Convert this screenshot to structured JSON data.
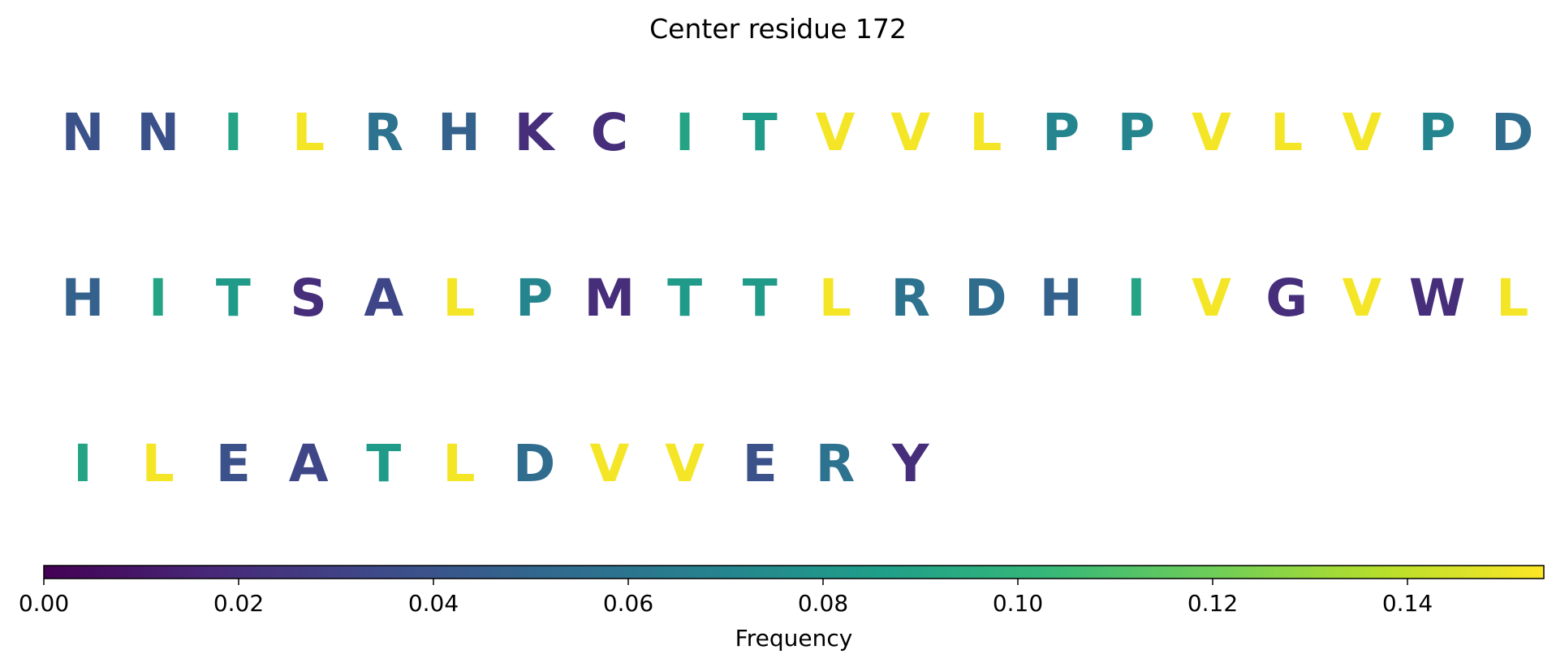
{
  "chart_data": {
    "type": "heatmap",
    "title": "Center residue 172",
    "residues": [
      {
        "letter": "N",
        "frequency": 0.038
      },
      {
        "letter": "N",
        "frequency": 0.038
      },
      {
        "letter": "I",
        "frequency": 0.09
      },
      {
        "letter": "L",
        "frequency": 0.152
      },
      {
        "letter": "R",
        "frequency": 0.058
      },
      {
        "letter": "H",
        "frequency": 0.048
      },
      {
        "letter": "K",
        "frequency": 0.02
      },
      {
        "letter": "C",
        "frequency": 0.02
      },
      {
        "letter": "I",
        "frequency": 0.09
      },
      {
        "letter": "T",
        "frequency": 0.084
      },
      {
        "letter": "V",
        "frequency": 0.152
      },
      {
        "letter": "V",
        "frequency": 0.152
      },
      {
        "letter": "L",
        "frequency": 0.152
      },
      {
        "letter": "P",
        "frequency": 0.07
      },
      {
        "letter": "P",
        "frequency": 0.07
      },
      {
        "letter": "V",
        "frequency": 0.152
      },
      {
        "letter": "L",
        "frequency": 0.152
      },
      {
        "letter": "V",
        "frequency": 0.152
      },
      {
        "letter": "P",
        "frequency": 0.07
      },
      {
        "letter": "D",
        "frequency": 0.054
      },
      {
        "letter": "H",
        "frequency": 0.048
      },
      {
        "letter": "I",
        "frequency": 0.09
      },
      {
        "letter": "T",
        "frequency": 0.084
      },
      {
        "letter": "S",
        "frequency": 0.02
      },
      {
        "letter": "A",
        "frequency": 0.032
      },
      {
        "letter": "L",
        "frequency": 0.152
      },
      {
        "letter": "P",
        "frequency": 0.07
      },
      {
        "letter": "M",
        "frequency": 0.02
      },
      {
        "letter": "T",
        "frequency": 0.084
      },
      {
        "letter": "T",
        "frequency": 0.084
      },
      {
        "letter": "L",
        "frequency": 0.152
      },
      {
        "letter": "R",
        "frequency": 0.058
      },
      {
        "letter": "D",
        "frequency": 0.054
      },
      {
        "letter": "H",
        "frequency": 0.048
      },
      {
        "letter": "I",
        "frequency": 0.09
      },
      {
        "letter": "V",
        "frequency": 0.152
      },
      {
        "letter": "G",
        "frequency": 0.02
      },
      {
        "letter": "V",
        "frequency": 0.152
      },
      {
        "letter": "W",
        "frequency": 0.02
      },
      {
        "letter": "L",
        "frequency": 0.152
      },
      {
        "letter": "I",
        "frequency": 0.09
      },
      {
        "letter": "L",
        "frequency": 0.152
      },
      {
        "letter": "E",
        "frequency": 0.038
      },
      {
        "letter": "A",
        "frequency": 0.032
      },
      {
        "letter": "T",
        "frequency": 0.084
      },
      {
        "letter": "L",
        "frequency": 0.152
      },
      {
        "letter": "D",
        "frequency": 0.054
      },
      {
        "letter": "V",
        "frequency": 0.152
      },
      {
        "letter": "V",
        "frequency": 0.152
      },
      {
        "letter": "E",
        "frequency": 0.038
      },
      {
        "letter": "R",
        "frequency": 0.058
      },
      {
        "letter": "Y",
        "frequency": 0.02
      }
    ],
    "colorbar": {
      "label": "Frequency",
      "colormap": "viridis",
      "range": [
        0,
        0.154
      ],
      "ticks": [
        "0.00",
        "0.02",
        "0.04",
        "0.06",
        "0.08",
        "0.10",
        "0.12",
        "0.14"
      ],
      "placement": "bottom"
    }
  }
}
